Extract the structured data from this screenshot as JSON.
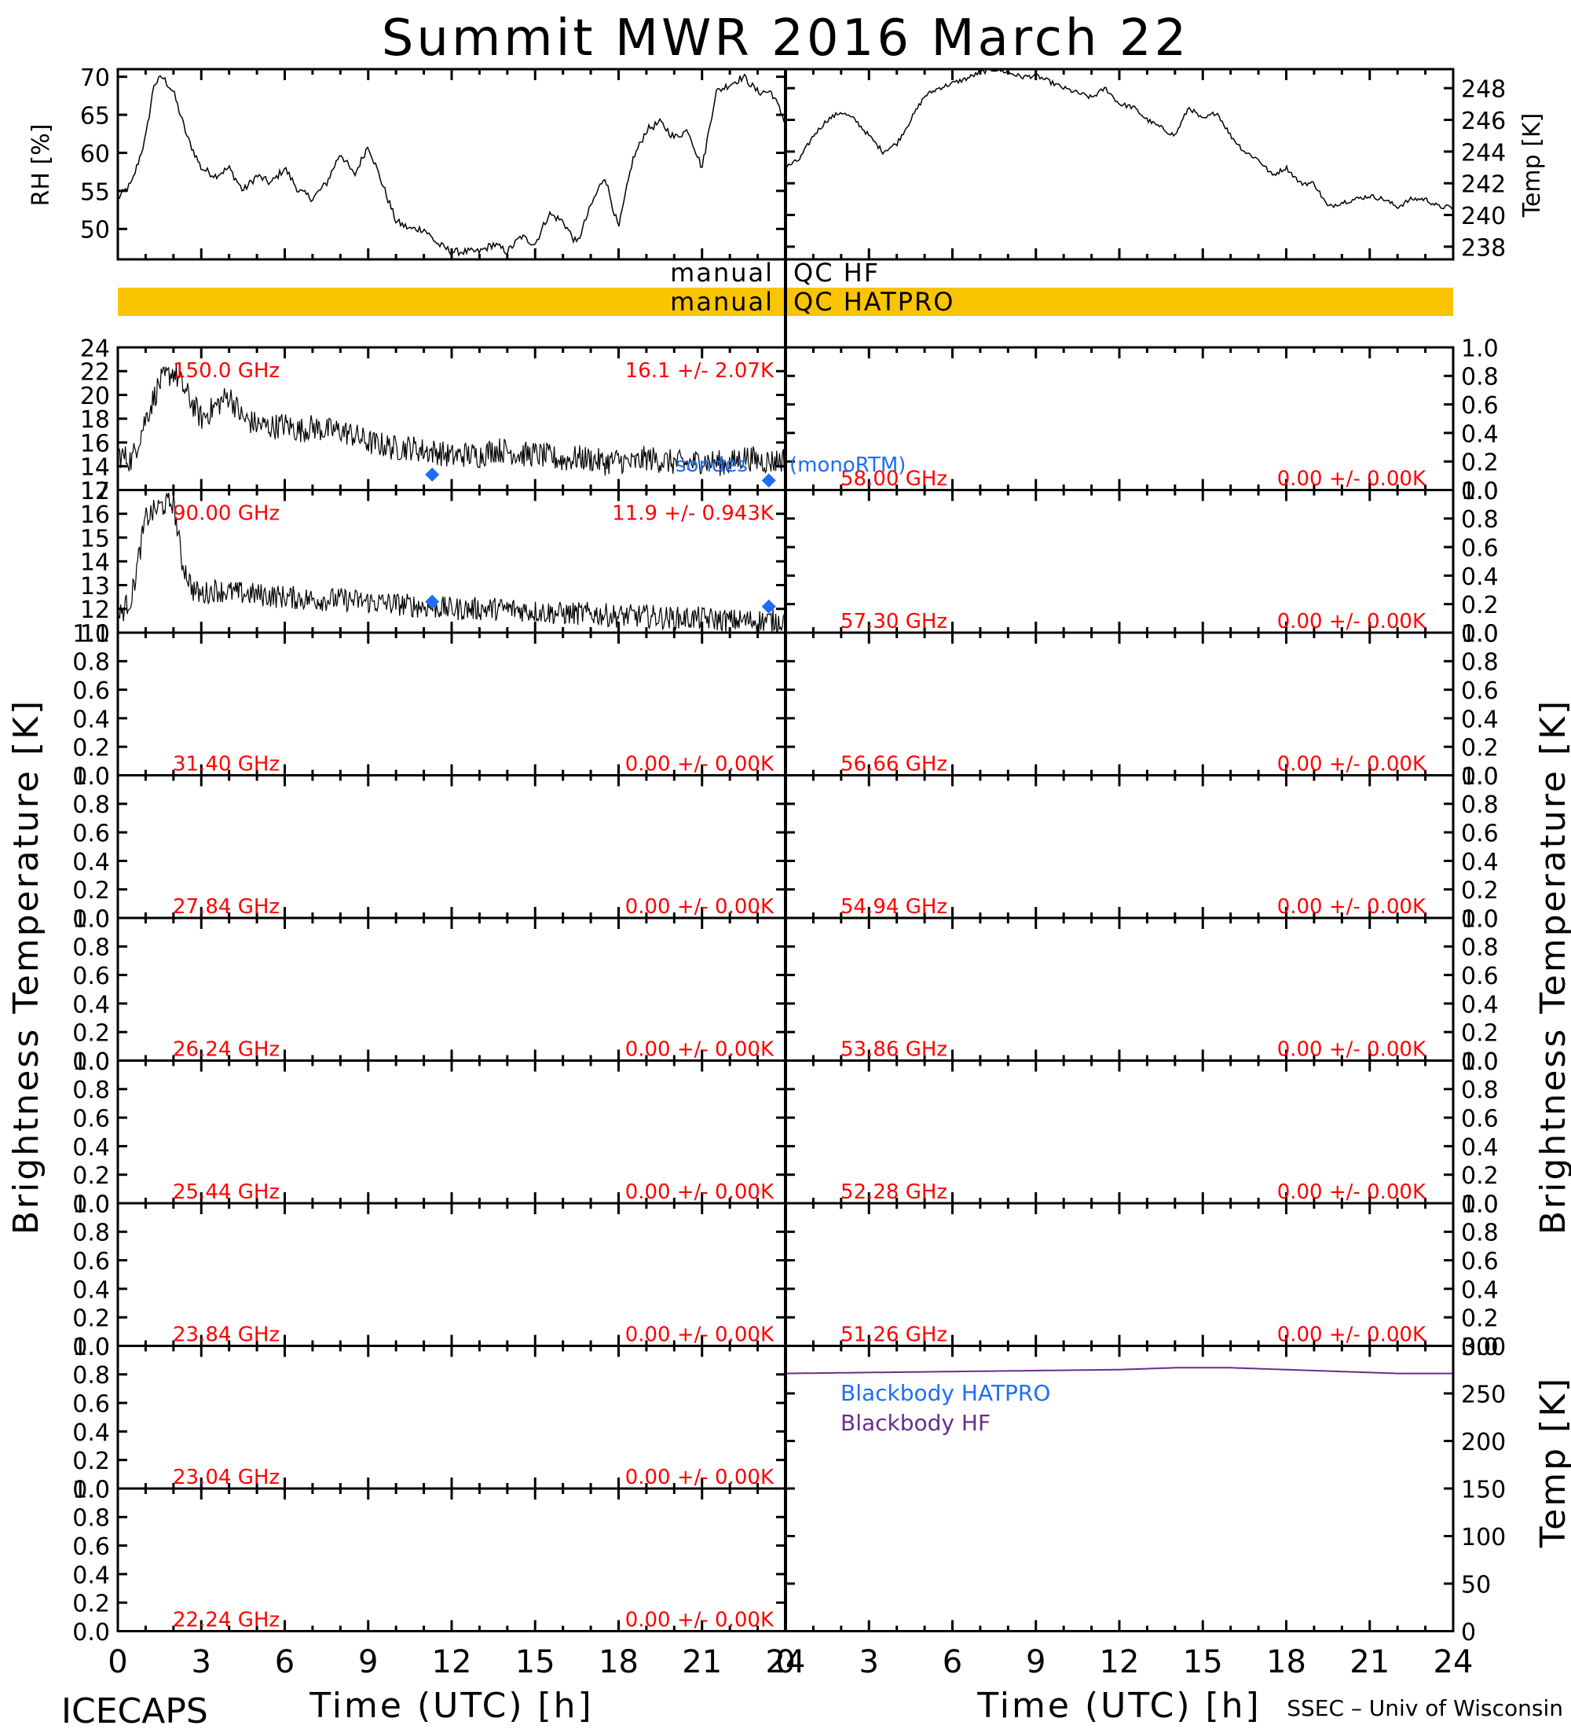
{
  "title": "Summit MWR 2016 March 22",
  "footer_left": "ICECAPS",
  "footer_right": "SSEC – Univ of Wisconsin",
  "colors": {
    "black": "#000000",
    "red": "#ff0000",
    "blue": "#1e6ef5",
    "purple": "#6a2c8c",
    "qc_bar": "#fac400"
  },
  "labels": {
    "rh_axis": "RH [%]",
    "temp_axis_top": "Temp [K]",
    "bt_axis_left": "Brightness Temperature [K]",
    "bt_axis_right": "Brightness Temperature [K]",
    "temp_axis_bottom": "Temp [K]",
    "xlabel": "Time (UTC) [h]",
    "qc_hf_left": "manual",
    "qc_hf_right": "QC HF",
    "qc_hatpro_left": "manual",
    "qc_hatpro_right": "QC HATPRO",
    "legend_bb_hatpro": "Blackbody HATPRO",
    "legend_bb_hf": "Blackbody HF",
    "monortm": "(monoRTM)",
    "sonde": "sondes"
  },
  "chart_data": {
    "type": "line",
    "x_ticks": [
      "0",
      "3",
      "6",
      "9",
      "12",
      "15",
      "18",
      "21",
      "24"
    ],
    "xlim": [
      0,
      24
    ],
    "surface": {
      "rh": {
        "ylim": [
          46,
          71
        ],
        "yticks": [
          "50",
          "55",
          "60",
          "65",
          "70"
        ],
        "x": [
          0,
          0.5,
          1,
          1.3,
          1.6,
          2,
          2.5,
          3,
          3.5,
          4,
          4.5,
          5,
          5.5,
          6,
          6.5,
          7,
          7.5,
          8,
          8.5,
          9,
          9.5,
          10,
          10.5,
          11,
          11.5,
          12,
          12.5,
          13,
          13.5,
          14,
          14.5,
          15,
          15.5,
          16,
          16.5,
          17,
          17.5,
          18,
          18.5,
          19,
          19.5,
          20,
          20.5,
          21,
          21.5,
          22,
          22.5,
          23,
          23.5,
          24
        ],
        "y": [
          54,
          56,
          62,
          69,
          70,
          68,
          62,
          58,
          57,
          58,
          55,
          57,
          56,
          58,
          55,
          54,
          56,
          60,
          57,
          61,
          56,
          51,
          50,
          50,
          48,
          47,
          47,
          47,
          48,
          47,
          49,
          48,
          52,
          51,
          48,
          53,
          57,
          50,
          59,
          63,
          64,
          62,
          63,
          58,
          68,
          69,
          70,
          68,
          68,
          64
        ]
      },
      "temp": {
        "ylim": [
          237.2,
          249.2
        ],
        "yticks": [
          "238",
          "240",
          "242",
          "244",
          "246",
          "248"
        ],
        "x": [
          0,
          0.5,
          1,
          1.5,
          2,
          2.5,
          3,
          3.5,
          4,
          4.5,
          5,
          5.5,
          6,
          6.5,
          7,
          7.5,
          8,
          8.5,
          9,
          9.5,
          10,
          10.5,
          11,
          11.5,
          12,
          12.5,
          13,
          13.5,
          14,
          14.5,
          15,
          15.5,
          16,
          16.5,
          17,
          17.5,
          18,
          18.5,
          19,
          19.5,
          20,
          20.5,
          21,
          21.5,
          22,
          22.5,
          23,
          23.5,
          24
        ],
        "y": [
          243,
          243.5,
          245,
          246,
          246.5,
          246,
          245,
          244,
          244.5,
          246,
          247.5,
          248,
          248.3,
          248.6,
          249,
          249.2,
          249,
          248.7,
          248.8,
          248.4,
          248,
          247.7,
          247.4,
          248,
          247,
          246.8,
          246,
          245.5,
          245,
          246.8,
          246,
          246.5,
          245,
          244,
          243.5,
          242.5,
          243,
          242,
          242,
          240.5,
          240.8,
          241,
          241.2,
          241,
          240.5,
          241,
          241,
          240.5,
          240.5
        ]
      }
    },
    "qc_bars": [
      {
        "name": "QC HF",
        "flagged": false
      },
      {
        "name": "QC HATPRO",
        "flagged": true
      }
    ],
    "panels_left": [
      {
        "freq": "150.0 GHz",
        "stat": "16.1 +/-  2.07K",
        "ylim": [
          12,
          24
        ],
        "yticks": [
          "12",
          "14",
          "16",
          "18",
          "20",
          "22",
          "24"
        ],
        "x": [
          0,
          0.5,
          1,
          1.5,
          2,
          2.5,
          3,
          3.5,
          4,
          4.5,
          5,
          5.5,
          6,
          6.5,
          7,
          7.5,
          8,
          8.5,
          9,
          9.5,
          10,
          10.5,
          11,
          11.5,
          12,
          12.5,
          13,
          13.5,
          14,
          14.5,
          15,
          15.5,
          16,
          16.5,
          17,
          17.5,
          18,
          18.5,
          19,
          19.5,
          20,
          20.5,
          21,
          21.5,
          22,
          22.5,
          23,
          23.5,
          24
        ],
        "y": [
          15,
          14.5,
          18,
          21,
          22,
          20,
          18,
          19,
          20,
          18,
          17.5,
          17.3,
          17.5,
          17,
          17.3,
          17,
          17,
          16.6,
          16,
          15.8,
          15.5,
          15.6,
          15.3,
          15.2,
          14.8,
          15,
          14.9,
          15.4,
          15.3,
          15,
          15,
          14.8,
          14.5,
          14.7,
          14.6,
          14.3,
          14.5,
          14.2,
          14.7,
          14.5,
          14.3,
          14.2,
          14.5,
          14.3,
          14.2,
          14.8,
          14.5,
          14.4,
          14.6
        ],
        "noise": 1.1,
        "sondes": [
          {
            "x": 11.3,
            "y": 13.3
          },
          {
            "x": 23.4,
            "y": 12.8
          }
        ]
      },
      {
        "freq": "90.00 GHz",
        "stat": "11.9 +/- 0.943K",
        "ylim": [
          11,
          17
        ],
        "yticks": [
          "11",
          "12",
          "13",
          "14",
          "15",
          "16",
          "17"
        ],
        "x": [
          0,
          0.5,
          1,
          1.5,
          2,
          2.3,
          2.7,
          3,
          3.5,
          4,
          5,
          6,
          7,
          8,
          9,
          10,
          11,
          12,
          13,
          14,
          15,
          16,
          17,
          18,
          19,
          20,
          21,
          22,
          23,
          24
        ],
        "y": [
          11.6,
          12.5,
          15.8,
          16.3,
          16.5,
          14,
          12.8,
          12.6,
          12.8,
          12.7,
          12.6,
          12.5,
          12.4,
          12.4,
          12.3,
          12.2,
          12.1,
          12.0,
          12.0,
          12.0,
          11.9,
          11.8,
          11.8,
          11.7,
          11.7,
          11.6,
          11.6,
          11.5,
          11.5,
          11.5
        ],
        "noise": 0.5,
        "sondes": [
          {
            "x": 11.3,
            "y": 12.3
          },
          {
            "x": 23.4,
            "y": 12.1
          }
        ]
      },
      {
        "freq": "31.40 GHz",
        "stat": "0.00 +/-  0.00K"
      },
      {
        "freq": "27.84 GHz",
        "stat": "0.00 +/-  0.00K"
      },
      {
        "freq": "26.24 GHz",
        "stat": "0.00 +/-  0.00K"
      },
      {
        "freq": "25.44 GHz",
        "stat": "0.00 +/-  0.00K"
      },
      {
        "freq": "23.84 GHz",
        "stat": "0.00 +/-  0.00K"
      },
      {
        "freq": "23.04 GHz",
        "stat": "0.00 +/-  0.00K"
      },
      {
        "freq": "22.24 GHz",
        "stat": "0.00 +/-  0.00K"
      }
    ],
    "panels_right": [
      {
        "freq": "58.00 GHz",
        "stat": "0.00 +/-  0.00K"
      },
      {
        "freq": "57.30 GHz",
        "stat": "0.00 +/-  0.00K"
      },
      {
        "freq": "56.66 GHz",
        "stat": "0.00 +/-  0.00K"
      },
      {
        "freq": "54.94 GHz",
        "stat": "0.00 +/-  0.00K"
      },
      {
        "freq": "53.86 GHz",
        "stat": "0.00 +/-  0.00K"
      },
      {
        "freq": "52.28 GHz",
        "stat": "0.00 +/-  0.00K"
      },
      {
        "freq": "51.26 GHz",
        "stat": "0.00 +/-  0.00K"
      }
    ],
    "empty_ylim": [
      0,
      1
    ],
    "empty_yticks": [
      "0.0",
      "0.2",
      "0.4",
      "0.6",
      "0.8",
      "1.0"
    ],
    "blackbody": {
      "ylim": [
        0,
        300
      ],
      "yticks": [
        "0",
        "50",
        "100",
        "150",
        "200",
        "250",
        "300"
      ],
      "hf": {
        "x": [
          0,
          3,
          6,
          9,
          12,
          14,
          15,
          16,
          17,
          18,
          20,
          22,
          24
        ],
        "y": [
          271,
          272,
          273,
          274,
          275,
          277,
          277,
          277,
          276,
          275,
          273,
          271,
          271
        ]
      },
      "hatpro": {
        "x": [
          0,
          24
        ],
        "y": [
          0,
          0
        ]
      }
    }
  }
}
